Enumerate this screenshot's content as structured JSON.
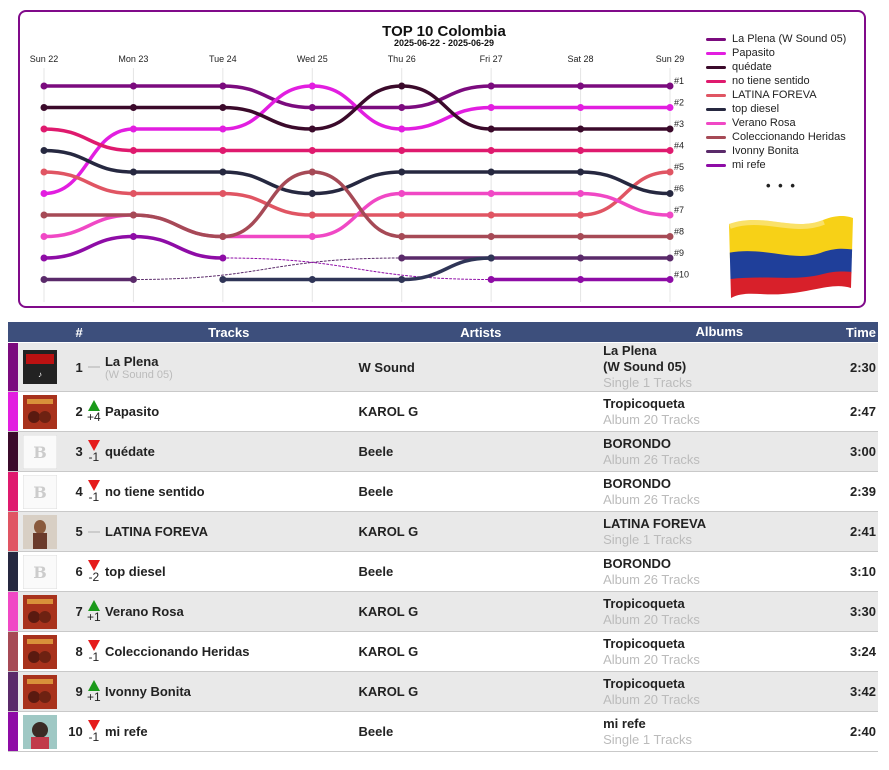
{
  "chart_data": {
    "type": "line",
    "title": "TOP 10 Colombia",
    "subtitle": "2025-06-22 - 2025-06-29",
    "x": [
      "Sun 22",
      "Mon 23",
      "Tue 24",
      "Wed 25",
      "Thu 26",
      "Fri 27",
      "Sat 28",
      "Sun 29"
    ],
    "y_tick_labels": [
      "#1",
      "#2",
      "#3",
      "#4",
      "#5",
      "#6",
      "#7",
      "#8",
      "#9",
      "#10"
    ],
    "ylim": [
      1,
      10
    ],
    "y_inverted": true,
    "legend_position": "right",
    "legend_more": "• • •",
    "series": [
      {
        "name": "La Plena (W Sound 05)",
        "color": "#7b0b7e",
        "values": [
          1,
          1,
          1,
          2,
          2,
          1,
          1,
          1
        ]
      },
      {
        "name": "Papasito",
        "color": "#e21ee0",
        "values": [
          6,
          3,
          3,
          1,
          3,
          2,
          2,
          2
        ]
      },
      {
        "name": "quédate",
        "color": "#3b0a2b",
        "values": [
          2,
          2,
          2,
          3,
          1,
          3,
          3,
          3
        ]
      },
      {
        "name": "no tiene sentido",
        "color": "#df1a6e",
        "values": [
          3,
          4,
          4,
          4,
          4,
          4,
          4,
          4
        ]
      },
      {
        "name": "LATINA FOREVA",
        "color": "#e05563",
        "values": [
          5,
          6,
          6,
          7,
          7,
          7,
          7,
          5
        ]
      },
      {
        "name": "top diesel",
        "color": "#262840",
        "values": [
          4,
          5,
          5,
          6,
          5,
          5,
          5,
          6
        ]
      },
      {
        "name": "Verano Rosa",
        "color": "#f048c5",
        "values": [
          8,
          7,
          8,
          8,
          6,
          6,
          6,
          7
        ]
      },
      {
        "name": "Coleccionando Heridas",
        "color": "#a64a56",
        "values": [
          7,
          7,
          8,
          5,
          8,
          8,
          8,
          8
        ]
      },
      {
        "name": "Ivonny Bonita",
        "color": "#5a2a6a",
        "values": [
          10,
          10,
          null,
          null,
          9,
          9,
          9,
          9
        ]
      },
      {
        "name": "mi refe",
        "color": "#8e0ca6",
        "values": [
          9,
          8,
          9,
          null,
          null,
          10,
          10,
          10
        ]
      }
    ],
    "extra_series": [
      {
        "name": "top diesel (2)",
        "color": "#2f3557",
        "values": [
          null,
          null,
          10,
          10,
          10,
          9,
          null,
          null
        ]
      }
    ]
  },
  "table": {
    "headers": {
      "num": "#",
      "tracks": "Tracks",
      "artists": "Artists",
      "albums": "Albums",
      "time": "Time"
    },
    "rows": [
      {
        "color": "#7b0b7e",
        "rank": "1",
        "change": "",
        "dir": "none",
        "title": "La Plena",
        "subtitle": "(W Sound 05)",
        "artist": "W Sound",
        "album": "La Plena",
        "album2": "(W Sound 05)",
        "album_info": "Single 1 Tracks",
        "time": "2:30",
        "thumb": "black"
      },
      {
        "color": "#e21ee0",
        "rank": "2",
        "change": "+4",
        "dir": "up",
        "title": "Papasito",
        "subtitle": "",
        "artist": "KAROL G",
        "album": "Tropicoqueta",
        "album2": "",
        "album_info": "Album 20 Tracks",
        "time": "2:47",
        "thumb": "red"
      },
      {
        "color": "#3b0a2b",
        "rank": "3",
        "change": "-1",
        "dir": "down",
        "title": "quédate",
        "subtitle": "",
        "artist": "Beele",
        "album": "BORONDO",
        "album2": "",
        "album_info": "Album 26 Tracks",
        "time": "3:00",
        "thumb": "white"
      },
      {
        "color": "#df1a6e",
        "rank": "4",
        "change": "-1",
        "dir": "down",
        "title": "no tiene sentido",
        "subtitle": "",
        "artist": "Beele",
        "album": "BORONDO",
        "album2": "",
        "album_info": "Album 26 Tracks",
        "time": "2:39",
        "thumb": "white"
      },
      {
        "color": "#e05563",
        "rank": "5",
        "change": "",
        "dir": "none",
        "title": "LATINA FOREVA",
        "subtitle": "",
        "artist": "KAROL G",
        "album": "LATINA FOREVA",
        "album2": "",
        "album_info": "Single 1 Tracks",
        "time": "2:41",
        "thumb": "photo"
      },
      {
        "color": "#262840",
        "rank": "6",
        "change": "-2",
        "dir": "down",
        "title": "top diesel",
        "subtitle": "",
        "artist": "Beele",
        "album": "BORONDO",
        "album2": "",
        "album_info": "Album 26 Tracks",
        "time": "3:10",
        "thumb": "white"
      },
      {
        "color": "#f048c5",
        "rank": "7",
        "change": "+1",
        "dir": "up",
        "title": "Verano Rosa",
        "subtitle": "",
        "artist": "KAROL G",
        "album": "Tropicoqueta",
        "album2": "",
        "album_info": "Album 20 Tracks",
        "time": "3:30",
        "thumb": "red"
      },
      {
        "color": "#a64a56",
        "rank": "8",
        "change": "-1",
        "dir": "down",
        "title": "Coleccionando Heridas",
        "subtitle": "",
        "artist": "KAROL G",
        "album": "Tropicoqueta",
        "album2": "",
        "album_info": "Album 20 Tracks",
        "time": "3:24",
        "thumb": "red"
      },
      {
        "color": "#5a2a6a",
        "rank": "9",
        "change": "+1",
        "dir": "up",
        "title": "Ivonny Bonita",
        "subtitle": "",
        "artist": "KAROL G",
        "album": "Tropicoqueta",
        "album2": "",
        "album_info": "Album 20 Tracks",
        "time": "3:42",
        "thumb": "red"
      },
      {
        "color": "#8e0ca6",
        "rank": "10",
        "change": "-1",
        "dir": "down",
        "title": "mi refe",
        "subtitle": "",
        "artist": "Beele",
        "album": "mi refe",
        "album2": "",
        "album_info": "Single 1 Tracks",
        "time": "2:40",
        "thumb": "teal"
      }
    ]
  },
  "flag": {
    "icon": "colombia-flag-icon",
    "colors": [
      "#f7d117",
      "#1f3f9a",
      "#d8202a"
    ]
  }
}
